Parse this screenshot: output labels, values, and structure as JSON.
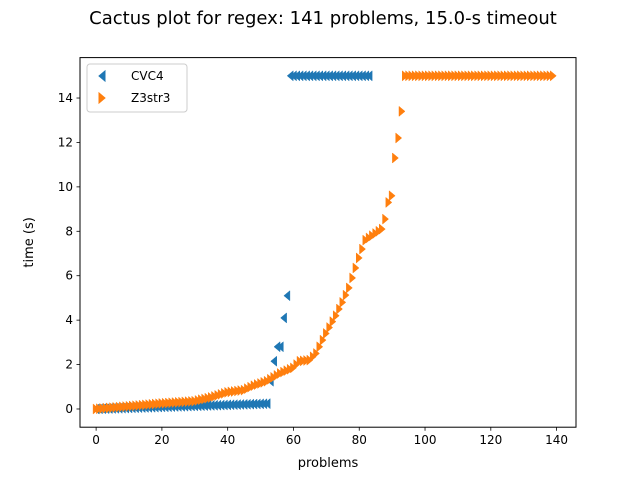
{
  "chart_data": {
    "type": "scatter",
    "title": "Cactus plot for regex: 141 problems, 15.0-s timeout",
    "xlabel": "problems",
    "ylabel": "time (s)",
    "xlim": [
      -4.9,
      145.9
    ],
    "ylim": [
      -0.82,
      15.82
    ],
    "xticks": [
      "0",
      "20",
      "40",
      "60",
      "80",
      "100",
      "120",
      "140"
    ],
    "yticks": [
      "0",
      "2",
      "4",
      "6",
      "8",
      "10",
      "12",
      "14"
    ],
    "grid": false,
    "legend": "upper left",
    "series": [
      {
        "name": "CVC4",
        "marker": "triangle-left",
        "color": "#1f77b4",
        "segments": [
          {
            "x_start": 0,
            "x_end": 52,
            "y_start": 0.0,
            "y_end": 0.24
          },
          {
            "x_start": 59,
            "x_end": 83,
            "y_start": 15.0,
            "y_end": 15.0
          }
        ],
        "points": [
          {
            "x": 53,
            "y": 1.25
          },
          {
            "x": 54,
            "y": 2.15
          },
          {
            "x": 55,
            "y": 2.8
          },
          {
            "x": 56,
            "y": 2.8
          },
          {
            "x": 57,
            "y": 4.1
          },
          {
            "x": 58,
            "y": 5.1
          }
        ]
      },
      {
        "name": "Z3str3",
        "marker": "triangle-right",
        "color": "#ff7f0e",
        "knots": [
          [
            0,
            0.0
          ],
          [
            10,
            0.12
          ],
          [
            20,
            0.25
          ],
          [
            30,
            0.35
          ],
          [
            35,
            0.52
          ],
          [
            40,
            0.75
          ],
          [
            45,
            0.85
          ],
          [
            48,
            1.05
          ],
          [
            52,
            1.25
          ],
          [
            56,
            1.6
          ],
          [
            60,
            1.85
          ],
          [
            62,
            2.15
          ],
          [
            65,
            2.2
          ],
          [
            67,
            2.5
          ],
          [
            70,
            3.4
          ],
          [
            73,
            4.2
          ],
          [
            75,
            4.8
          ],
          [
            77,
            5.45
          ],
          [
            80,
            6.8
          ],
          [
            82,
            7.6
          ],
          [
            85,
            7.9
          ],
          [
            87,
            8.1
          ],
          [
            88,
            8.55
          ],
          [
            89,
            9.3
          ],
          [
            90,
            9.6
          ],
          [
            91,
            11.3
          ],
          [
            92,
            12.2
          ],
          [
            93,
            13.4
          ],
          [
            94,
            15.0
          ],
          [
            139,
            15.0
          ]
        ]
      }
    ]
  }
}
